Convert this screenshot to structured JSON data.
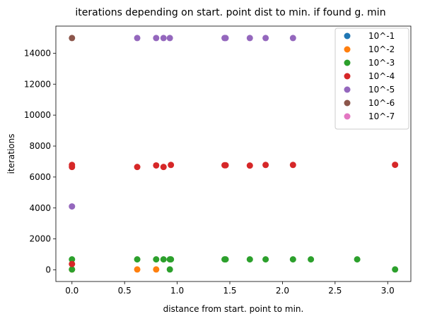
{
  "chart_data": {
    "type": "scatter",
    "title": "iterations depending on start. point dist to min. if found g. min",
    "xlabel": "distance from start. point to min.",
    "ylabel": "iterations",
    "xlim": [
      -0.153,
      3.22
    ],
    "ylim": [
      -750,
      15750
    ],
    "xticks": [
      0.0,
      0.5,
      1.0,
      1.5,
      2.0,
      2.5,
      3.0
    ],
    "xtick_labels": [
      "0.0",
      "0.5",
      "1.0",
      "1.5",
      "2.0",
      "2.5",
      "3.0"
    ],
    "yticks": [
      0,
      2000,
      4000,
      6000,
      8000,
      10000,
      12000,
      14000
    ],
    "ytick_labels": [
      "0",
      "2000",
      "4000",
      "6000",
      "8000",
      "10000",
      "12000",
      "14000"
    ],
    "grid": false,
    "legend_position": "top-right",
    "series": [
      {
        "name": "10^-1",
        "color": "#1f77b4",
        "points": []
      },
      {
        "name": "10^-2",
        "color": "#ff7f0e",
        "points": [
          [
            0.0,
            30
          ],
          [
            0.62,
            30
          ],
          [
            0.8,
            30
          ]
        ]
      },
      {
        "name": "10^-3",
        "color": "#2ca02c",
        "points": [
          [
            0.0,
            30
          ],
          [
            0.0,
            680
          ],
          [
            0.62,
            680
          ],
          [
            0.8,
            680
          ],
          [
            0.87,
            680
          ],
          [
            0.93,
            680
          ],
          [
            0.94,
            680
          ],
          [
            0.93,
            30
          ],
          [
            1.45,
            680
          ],
          [
            1.46,
            680
          ],
          [
            1.69,
            680
          ],
          [
            1.84,
            680
          ],
          [
            2.1,
            680
          ],
          [
            2.27,
            680
          ],
          [
            2.71,
            680
          ],
          [
            3.07,
            30
          ]
        ]
      },
      {
        "name": "10^-4",
        "color": "#d62728",
        "points": [
          [
            0.0,
            380
          ],
          [
            0.0,
            6650
          ],
          [
            0.0,
            6780
          ],
          [
            0.62,
            6650
          ],
          [
            0.8,
            6750
          ],
          [
            0.87,
            6650
          ],
          [
            0.94,
            6780
          ],
          [
            1.45,
            6760
          ],
          [
            1.46,
            6760
          ],
          [
            1.69,
            6740
          ],
          [
            1.84,
            6780
          ],
          [
            2.1,
            6780
          ],
          [
            3.07,
            6790
          ]
        ]
      },
      {
        "name": "10^-5",
        "color": "#9467bd",
        "points": [
          [
            0.0,
            4100
          ],
          [
            0.62,
            14980
          ],
          [
            0.8,
            14980
          ],
          [
            0.87,
            14980
          ],
          [
            0.93,
            14980
          ],
          [
            1.45,
            14980
          ],
          [
            1.46,
            14980
          ],
          [
            1.69,
            14980
          ],
          [
            1.84,
            14980
          ],
          [
            2.1,
            14980
          ]
        ]
      },
      {
        "name": "10^-6",
        "color": "#8c564b",
        "points": [
          [
            0.0,
            14980
          ]
        ]
      },
      {
        "name": "10^-7",
        "color": "#e377c2",
        "points": []
      }
    ]
  }
}
